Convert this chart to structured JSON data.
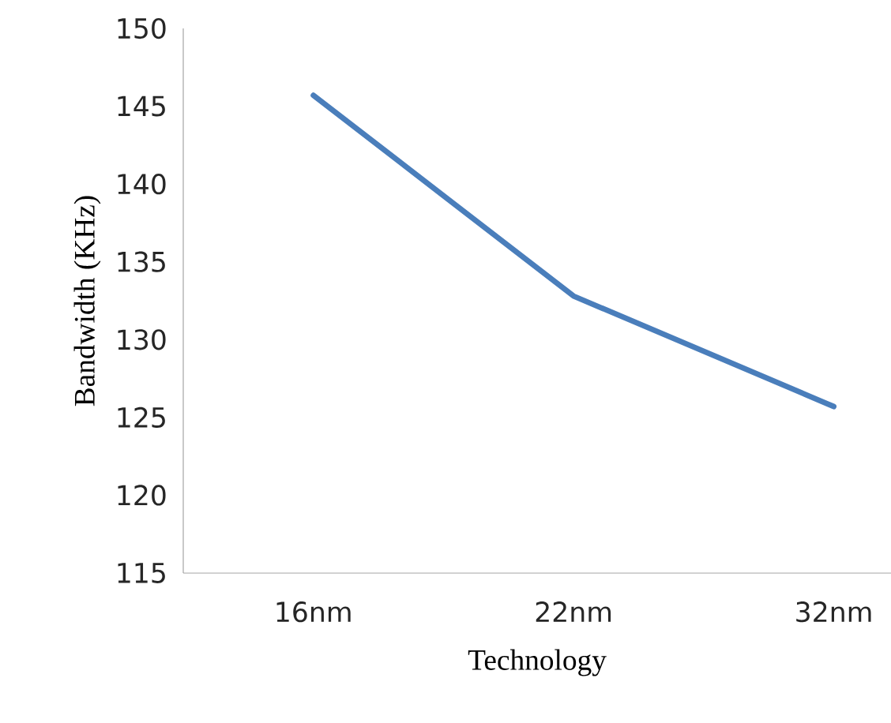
{
  "chart_data": {
    "type": "line",
    "xlabel": "Technology",
    "ylabel": "Bandwidth (KHz)",
    "categories": [
      "16nm",
      "22nm",
      "32nm"
    ],
    "series": [
      {
        "color": "#4a7ebb",
        "values": [
          145.7,
          132.8,
          125.7
        ]
      }
    ],
    "ylim": [
      115,
      150
    ],
    "yticks": [
      115,
      120,
      125,
      130,
      135,
      140,
      145,
      150
    ],
    "grid": false,
    "marker": "none",
    "line_style": "solid"
  }
}
